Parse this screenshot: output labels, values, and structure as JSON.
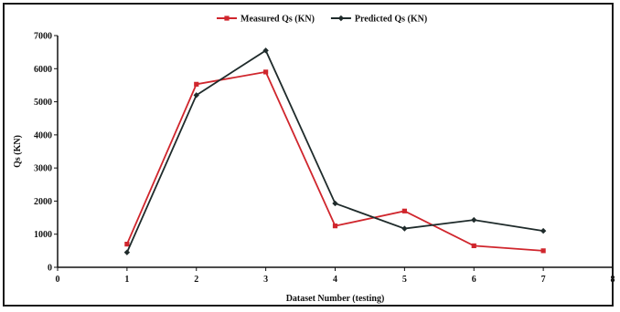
{
  "chart_data": {
    "type": "line",
    "title": "",
    "xlabel": "Dataset Number (testing)",
    "ylabel": "Qs (KN)",
    "xlim": [
      0,
      8
    ],
    "ylim": [
      0,
      7000
    ],
    "x_ticks": [
      0,
      1,
      2,
      3,
      4,
      5,
      6,
      7,
      8
    ],
    "y_ticks": [
      0,
      1000,
      2000,
      3000,
      4000,
      5000,
      6000,
      7000
    ],
    "legend_position": "top-center",
    "grid": false,
    "x": [
      1,
      2,
      3,
      4,
      5,
      6,
      7
    ],
    "series": [
      {
        "name": "Measured Qs (KN)",
        "color": "#d0262d",
        "marker": "square",
        "values": [
          700,
          5530,
          5900,
          1250,
          1700,
          650,
          500
        ]
      },
      {
        "name": "Predicted Qs (KN)",
        "color": "#1f2b2b",
        "marker": "diamond",
        "values": [
          450,
          5200,
          6550,
          1930,
          1170,
          1430,
          1100
        ]
      }
    ]
  }
}
